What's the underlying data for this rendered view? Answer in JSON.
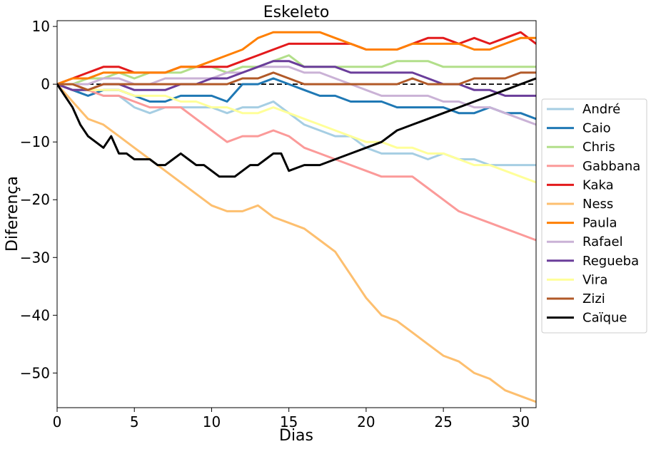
{
  "chart_data": {
    "type": "line",
    "title": "Eskeleto",
    "xlabel": "Dias",
    "ylabel": "Diferença",
    "xlim": [
      0,
      31
    ],
    "ylim": [
      -56,
      11
    ],
    "xticks": [
      "0",
      "5",
      "10",
      "15",
      "20",
      "25",
      "30"
    ],
    "yticks": [
      "10",
      "0",
      "−10",
      "−20",
      "−30",
      "−40",
      "−50"
    ],
    "grid": false,
    "legend_position": "right, outside the plot area",
    "reference_line": {
      "y": 0,
      "style": "dashed",
      "color": "#000000"
    },
    "series": [
      {
        "name": "André",
        "color": "#a6cee3",
        "x": [
          0,
          1,
          2,
          3,
          4,
          5,
          6,
          7,
          8,
          9,
          10,
          11,
          12,
          13,
          14,
          15,
          16,
          17,
          18,
          19,
          20,
          21,
          22,
          23,
          24,
          25,
          26,
          27,
          28,
          29,
          30,
          31
        ],
        "y": [
          0,
          -1,
          -1,
          -2,
          -2,
          -4,
          -5,
          -4,
          -4,
          -4,
          -4,
          -5,
          -4,
          -4,
          -3,
          -5,
          -7,
          -8,
          -9,
          -9,
          -11,
          -12,
          -12,
          -12,
          -13,
          -12,
          -13,
          -13,
          -14,
          -14,
          -14,
          -14
        ]
      },
      {
        "name": "Caio",
        "color": "#1f78b4",
        "x": [
          0,
          1,
          2,
          3,
          4,
          5,
          6,
          7,
          8,
          9,
          10,
          11,
          12,
          13,
          14,
          15,
          16,
          17,
          18,
          19,
          20,
          21,
          22,
          23,
          24,
          25,
          26,
          27,
          28,
          29,
          30,
          31
        ],
        "y": [
          0,
          -1,
          -2,
          -1,
          -1,
          -2,
          -3,
          -3,
          -2,
          -2,
          -2,
          -3,
          0,
          0,
          1,
          0,
          -1,
          -2,
          -2,
          -3,
          -3,
          -3,
          -4,
          -4,
          -4,
          -4,
          -5,
          -5,
          -4,
          -5,
          -5,
          -6
        ]
      },
      {
        "name": "Chris",
        "color": "#b2df8a",
        "x": [
          0,
          1,
          2,
          3,
          4,
          5,
          6,
          7,
          8,
          9,
          10,
          11,
          12,
          13,
          14,
          15,
          16,
          17,
          18,
          19,
          20,
          21,
          22,
          23,
          24,
          25,
          26,
          27,
          28,
          29,
          30,
          31
        ],
        "y": [
          0,
          0,
          1,
          1,
          2,
          1,
          2,
          2,
          2,
          3,
          3,
          2,
          3,
          3,
          4,
          5,
          3,
          3,
          3,
          3,
          3,
          3,
          4,
          4,
          4,
          3,
          3,
          3,
          3,
          3,
          3,
          3
        ]
      },
      {
        "name": "Gabbana",
        "color": "#fb9a99",
        "x": [
          0,
          1,
          2,
          3,
          4,
          5,
          6,
          7,
          8,
          9,
          10,
          11,
          12,
          13,
          14,
          15,
          16,
          17,
          18,
          19,
          20,
          21,
          22,
          23,
          24,
          25,
          26,
          27,
          28,
          29,
          30,
          31
        ],
        "y": [
          0,
          -1,
          -1,
          -2,
          -2,
          -3,
          -4,
          -4,
          -4,
          -6,
          -8,
          -10,
          -9,
          -9,
          -8,
          -9,
          -11,
          -12,
          -13,
          -14,
          -15,
          -16,
          -16,
          -16,
          -18,
          -20,
          -22,
          -23,
          -24,
          -25,
          -26,
          -27
        ]
      },
      {
        "name": "Kaka",
        "color": "#e31a1c",
        "x": [
          0,
          1,
          2,
          3,
          4,
          5,
          6,
          7,
          8,
          9,
          10,
          11,
          12,
          13,
          14,
          15,
          16,
          17,
          18,
          19,
          20,
          21,
          22,
          23,
          24,
          25,
          26,
          27,
          28,
          29,
          30,
          31
        ],
        "y": [
          0,
          1,
          2,
          3,
          3,
          2,
          2,
          2,
          3,
          3,
          3,
          3,
          4,
          5,
          6,
          7,
          7,
          7,
          7,
          7,
          6,
          6,
          6,
          7,
          8,
          8,
          7,
          8,
          7,
          8,
          9,
          7
        ]
      },
      {
        "name": "Ness",
        "color": "#fdbf6f",
        "x": [
          0,
          1,
          2,
          3,
          4,
          5,
          6,
          7,
          8,
          9,
          10,
          11,
          12,
          13,
          14,
          15,
          16,
          17,
          18,
          19,
          20,
          21,
          22,
          23,
          24,
          25,
          26,
          27,
          28,
          29,
          30,
          31
        ],
        "y": [
          0,
          -3,
          -6,
          -7,
          -9,
          -11,
          -13,
          -15,
          -17,
          -19,
          -21,
          -22,
          -22,
          -21,
          -23,
          -24,
          -25,
          -27,
          -29,
          -33,
          -37,
          -40,
          -41,
          -43,
          -45,
          -47,
          -48,
          -50,
          -51,
          -53,
          -54,
          -55
        ]
      },
      {
        "name": "Paula",
        "color": "#ff7f00",
        "x": [
          0,
          1,
          2,
          3,
          4,
          5,
          6,
          7,
          8,
          9,
          10,
          11,
          12,
          13,
          14,
          15,
          16,
          17,
          18,
          19,
          20,
          21,
          22,
          23,
          24,
          25,
          26,
          27,
          28,
          29,
          30,
          31
        ],
        "y": [
          0,
          1,
          1,
          2,
          2,
          2,
          2,
          2,
          3,
          3,
          4,
          5,
          6,
          8,
          9,
          9,
          9,
          9,
          8,
          7,
          6,
          6,
          6,
          7,
          7,
          7,
          7,
          6,
          6,
          7,
          8,
          8
        ]
      },
      {
        "name": "Rafael",
        "color": "#cab2d6",
        "x": [
          0,
          1,
          2,
          3,
          4,
          5,
          6,
          7,
          8,
          9,
          10,
          11,
          12,
          13,
          14,
          15,
          16,
          17,
          18,
          19,
          20,
          21,
          22,
          23,
          24,
          25,
          26,
          27,
          28,
          29,
          30,
          31
        ],
        "y": [
          0,
          0,
          0,
          1,
          1,
          0,
          0,
          1,
          1,
          1,
          1,
          2,
          2,
          3,
          3,
          3,
          2,
          2,
          1,
          0,
          -1,
          -2,
          -2,
          -2,
          -2,
          -3,
          -3,
          -4,
          -4,
          -5,
          -6,
          -7
        ]
      },
      {
        "name": "Regueba",
        "color": "#6a3d9a",
        "x": [
          0,
          1,
          2,
          3,
          4,
          5,
          6,
          7,
          8,
          9,
          10,
          11,
          12,
          13,
          14,
          15,
          16,
          17,
          18,
          19,
          20,
          21,
          22,
          23,
          24,
          25,
          26,
          27,
          28,
          29,
          30,
          31
        ],
        "y": [
          0,
          -1,
          -1,
          0,
          0,
          -1,
          -1,
          -1,
          0,
          0,
          1,
          1,
          2,
          3,
          4,
          4,
          3,
          3,
          3,
          2,
          2,
          2,
          2,
          2,
          1,
          0,
          0,
          -1,
          -1,
          -2,
          -2,
          -2
        ]
      },
      {
        "name": "Vira",
        "color": "#ffff99",
        "x": [
          0,
          1,
          2,
          3,
          4,
          5,
          6,
          7,
          8,
          9,
          10,
          11,
          12,
          13,
          14,
          15,
          16,
          17,
          18,
          19,
          20,
          21,
          22,
          23,
          24,
          25,
          26,
          27,
          28,
          29,
          30,
          31
        ],
        "y": [
          0,
          0,
          -1,
          -1,
          -1,
          -2,
          -2,
          -2,
          -3,
          -3,
          -4,
          -4,
          -5,
          -5,
          -4,
          -5,
          -6,
          -7,
          -8,
          -9,
          -10,
          -10,
          -11,
          -11,
          -12,
          -12,
          -13,
          -14,
          -14,
          -15,
          -16,
          -17
        ]
      },
      {
        "name": "Zizi",
        "color": "#b15928",
        "x": [
          0,
          1,
          2,
          3,
          4,
          5,
          6,
          7,
          8,
          9,
          10,
          11,
          12,
          13,
          14,
          15,
          16,
          17,
          18,
          19,
          20,
          21,
          22,
          23,
          24,
          25,
          26,
          27,
          28,
          29,
          30,
          31
        ],
        "y": [
          0,
          0,
          -1,
          0,
          0,
          0,
          0,
          0,
          0,
          0,
          0,
          0,
          1,
          1,
          2,
          1,
          0,
          0,
          0,
          0,
          0,
          0,
          0,
          1,
          0,
          0,
          0,
          1,
          1,
          1,
          2,
          2
        ]
      },
      {
        "name": "Caïque",
        "color": "#000000",
        "x": [
          0,
          0.5,
          1,
          1.5,
          2,
          2.5,
          3,
          3.5,
          4,
          4.5,
          5,
          5.5,
          6,
          6.5,
          7,
          7.5,
          8,
          8.5,
          9,
          9.5,
          10,
          10.5,
          11,
          11.5,
          12,
          12.5,
          13,
          13.5,
          14,
          14.5,
          15,
          16,
          17,
          18,
          19,
          20,
          21,
          22,
          23,
          24,
          25,
          26,
          27,
          28,
          29,
          30,
          31
        ],
        "y": [
          0,
          -2,
          -4,
          -7,
          -9,
          -10,
          -11,
          -9,
          -12,
          -12,
          -13,
          -13,
          -13,
          -14,
          -14,
          -13,
          -12,
          -13,
          -14,
          -14,
          -15,
          -16,
          -16,
          -16,
          -15,
          -14,
          -14,
          -13,
          -12,
          -12,
          -15,
          -14,
          -14,
          -13,
          -12,
          -11,
          -10,
          -8,
          -7,
          -6,
          -5,
          -4,
          -3,
          -2,
          -1,
          0,
          1
        ]
      }
    ]
  }
}
